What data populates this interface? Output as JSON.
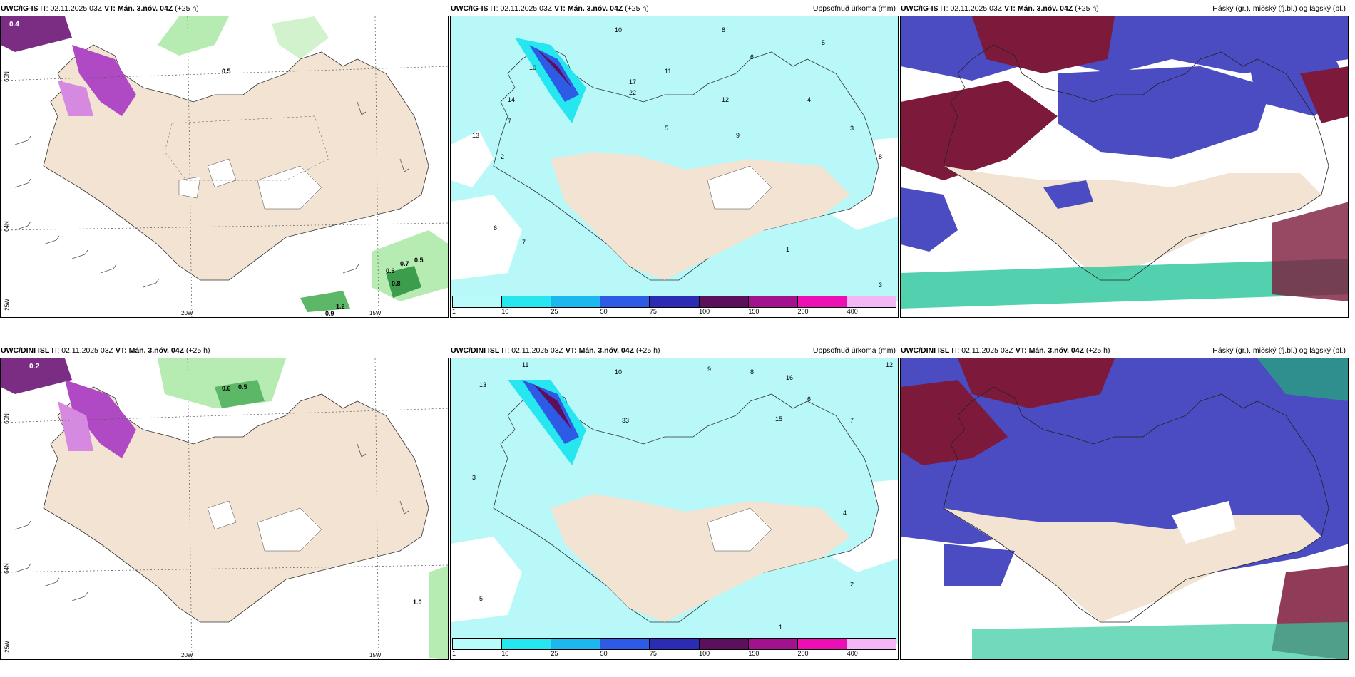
{
  "rows": [
    {
      "model": "UWC/IG-IS",
      "it_prefix": "IT:",
      "it": "02.11.2025 03Z",
      "vt_prefix": "VT:",
      "vt": "Mán. 3.nóv. 04Z",
      "lead": "(+25 h)",
      "lat_labels": [
        "66N",
        "64N",
        "25W"
      ],
      "lon_labels": [
        "20W",
        "15W"
      ],
      "precip_values": [
        "10",
        "8",
        "10",
        "11",
        "6",
        "5",
        "4",
        "7",
        "17",
        "22",
        "12",
        "5",
        "14",
        "8",
        "3",
        "7",
        "9",
        "6",
        "13",
        "3",
        "2",
        "1"
      ],
      "wind_values": [
        "0.4",
        "0.5",
        "0.6",
        "0.7",
        "0.8",
        "0.9",
        "1.2",
        "0.5"
      ]
    },
    {
      "model": "UWC/DINI ISL",
      "it_prefix": "IT:",
      "it": "02.11.2025 03Z",
      "vt_prefix": "VT:",
      "vt": "Mán. 3.nóv. 04Z",
      "lead": "(+25 h)",
      "lat_labels": [
        "66N",
        "64N",
        "25W"
      ],
      "lon_labels": [
        "20W",
        "15W"
      ],
      "precip_values": [
        "11",
        "13",
        "10",
        "9",
        "8",
        "16",
        "6",
        "12",
        "7",
        "33",
        "15",
        "4",
        "5",
        "3",
        "2",
        "1"
      ],
      "wind_values": [
        "0.2",
        "0.6",
        "0.5",
        "1.0"
      ]
    }
  ],
  "precip_title": "Uppsöfnuð úrkoma (mm)",
  "cloud_title": "Háský (gr.), miðský (fj.bl.) og lágský (bl.)",
  "colorbar": {
    "ticks": [
      "1",
      "10",
      "25",
      "50",
      "75",
      "100",
      "150",
      "200",
      "400"
    ],
    "colors": [
      "#b9fbfb",
      "#26e6f0",
      "#1bb7ee",
      "#2e5be6",
      "#2b2bb4",
      "#5c0f5a",
      "#a3128e",
      "#ec0fb3",
      "#f2b7f4"
    ]
  },
  "colors": {
    "land": "#f2e3d2",
    "ocean_precip": "#b9f8f8",
    "cloud_high": "#7d1a3c",
    "cloud_low": "#4b4bc2",
    "cloud_mid": "#35c9a0",
    "wind_green": "#b6ebb2",
    "wind_purple": "#b04ac4"
  }
}
